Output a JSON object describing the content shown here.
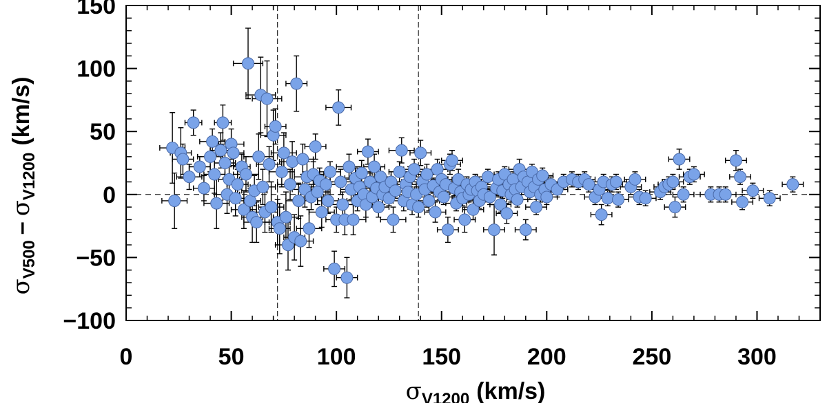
{
  "chart_data": {
    "type": "scatter",
    "title": "",
    "xlabel": {
      "symbol": "σ",
      "subscript": "V1200",
      "unit": "(km/s)"
    },
    "ylabel": {
      "symbol_a": "σ",
      "subscript_a": "V500",
      "minus": "–",
      "symbol_b": "σ",
      "subscript_b": "V1200",
      "unit": "(km/s)"
    },
    "xlim": [
      0,
      330
    ],
    "ylim": [
      -100,
      150
    ],
    "x_ticks": [
      "0",
      "50",
      "100",
      "150",
      "200",
      "250",
      "300"
    ],
    "x_tick_values": [
      0,
      50,
      100,
      150,
      200,
      250,
      300
    ],
    "y_ticks": [
      "150",
      "100",
      "50",
      "0",
      "−50",
      "−100"
    ],
    "y_tick_values": [
      150,
      100,
      50,
      0,
      -50,
      -100
    ],
    "reference_lines": {
      "horizontal_y": 0,
      "vertical_x": [
        72,
        139
      ]
    },
    "marker_color": "#7aa3e8",
    "points": [
      [
        22,
        37,
        6,
        28
      ],
      [
        23,
        -5,
        6,
        22
      ],
      [
        26,
        33,
        5,
        20
      ],
      [
        27,
        28,
        5,
        12
      ],
      [
        30,
        14,
        6,
        10
      ],
      [
        32,
        57,
        4,
        10
      ],
      [
        35,
        22,
        5,
        8
      ],
      [
        37,
        5,
        5,
        10
      ],
      [
        40,
        30,
        6,
        12
      ],
      [
        41,
        42,
        6,
        10
      ],
      [
        42,
        16,
        5,
        15
      ],
      [
        43,
        -7,
        6,
        20
      ],
      [
        45,
        35,
        5,
        14
      ],
      [
        46,
        57,
        4,
        14
      ],
      [
        47,
        25,
        5,
        12
      ],
      [
        48,
        0,
        6,
        15
      ],
      [
        49,
        12,
        5,
        10
      ],
      [
        50,
        40,
        6,
        12
      ],
      [
        51,
        33,
        5,
        10
      ],
      [
        52,
        -3,
        6,
        14
      ],
      [
        53,
        8,
        5,
        12
      ],
      [
        55,
        22,
        4,
        10
      ],
      [
        56,
        -12,
        6,
        15
      ],
      [
        57,
        16,
        6,
        14
      ],
      [
        58,
        104,
        7,
        28
      ],
      [
        59,
        -5,
        5,
        10
      ],
      [
        60,
        -18,
        5,
        20
      ],
      [
        61,
        3,
        6,
        12
      ],
      [
        62,
        -22,
        6,
        16
      ],
      [
        63,
        30,
        7,
        18
      ],
      [
        64,
        79,
        7,
        30
      ],
      [
        65,
        6,
        6,
        14
      ],
      [
        66,
        -14,
        6,
        16
      ],
      [
        67,
        76,
        7,
        30
      ],
      [
        68,
        24,
        6,
        14
      ],
      [
        69,
        -10,
        6,
        20
      ],
      [
        70,
        47,
        6,
        20
      ],
      [
        71,
        54,
        5,
        14
      ],
      [
        72,
        -22,
        6,
        18
      ],
      [
        73,
        -27,
        5,
        20
      ],
      [
        74,
        18,
        6,
        12
      ],
      [
        75,
        33,
        6,
        16
      ],
      [
        76,
        -18,
        6,
        20
      ],
      [
        77,
        -40,
        6,
        20
      ],
      [
        78,
        8,
        6,
        12
      ],
      [
        79,
        26,
        6,
        16
      ],
      [
        80,
        -34,
        5,
        18
      ],
      [
        81,
        88,
        5,
        22
      ],
      [
        82,
        -5,
        6,
        14
      ],
      [
        83,
        -37,
        6,
        20
      ],
      [
        84,
        28,
        5,
        12
      ],
      [
        85,
        4,
        6,
        14
      ],
      [
        86,
        14,
        6,
        12
      ],
      [
        87,
        -27,
        6,
        15
      ],
      [
        88,
        -2,
        6,
        10
      ],
      [
        89,
        16,
        5,
        10
      ],
      [
        90,
        38,
        5,
        10
      ],
      [
        91,
        2,
        6,
        10
      ],
      [
        92,
        11,
        5,
        10
      ],
      [
        93,
        -14,
        6,
        12
      ],
      [
        95,
        8,
        6,
        10
      ],
      [
        96,
        -5,
        5,
        10
      ],
      [
        97,
        18,
        5,
        8
      ],
      [
        99,
        -59,
        5,
        14
      ],
      [
        100,
        -20,
        5,
        10
      ],
      [
        101,
        69,
        6,
        14
      ],
      [
        102,
        10,
        5,
        10
      ],
      [
        103,
        -8,
        6,
        10
      ],
      [
        104,
        -20,
        5,
        12
      ],
      [
        105,
        -66,
        5,
        16
      ],
      [
        106,
        22,
        6,
        10
      ],
      [
        107,
        4,
        5,
        8
      ],
      [
        108,
        -20,
        6,
        12
      ],
      [
        109,
        13,
        5,
        8
      ],
      [
        110,
        -5,
        5,
        8
      ],
      [
        111,
        6,
        5,
        8
      ],
      [
        112,
        17,
        5,
        10
      ],
      [
        113,
        0,
        5,
        8
      ],
      [
        114,
        -8,
        6,
        10
      ],
      [
        115,
        34,
        5,
        10
      ],
      [
        116,
        10,
        5,
        8
      ],
      [
        117,
        -2,
        5,
        8
      ],
      [
        118,
        22,
        5,
        10
      ],
      [
        119,
        5,
        6,
        8
      ],
      [
        120,
        -10,
        5,
        8
      ],
      [
        121,
        14,
        5,
        8
      ],
      [
        122,
        0,
        5,
        8
      ],
      [
        123,
        6,
        5,
        8
      ],
      [
        125,
        -3,
        5,
        6
      ],
      [
        126,
        10,
        5,
        8
      ],
      [
        127,
        -20,
        6,
        10
      ],
      [
        128,
        3,
        5,
        6
      ],
      [
        130,
        18,
        5,
        8
      ],
      [
        131,
        35,
        6,
        10
      ],
      [
        132,
        -5,
        5,
        8
      ],
      [
        133,
        8,
        5,
        8
      ],
      [
        134,
        2,
        5,
        6
      ],
      [
        135,
        14,
        5,
        8
      ],
      [
        136,
        -8,
        5,
        8
      ],
      [
        137,
        20,
        5,
        8
      ],
      [
        138,
        0,
        5,
        6
      ],
      [
        139,
        -10,
        5,
        8
      ],
      [
        140,
        33,
        5,
        10
      ],
      [
        141,
        10,
        5,
        8
      ],
      [
        142,
        4,
        5,
        6
      ],
      [
        143,
        16,
        5,
        8
      ],
      [
        144,
        -5,
        5,
        8
      ],
      [
        146,
        7,
        5,
        6
      ],
      [
        147,
        -14,
        5,
        8
      ],
      [
        148,
        20,
        5,
        8
      ],
      [
        149,
        2,
        5,
        6
      ],
      [
        150,
        12,
        5,
        8
      ],
      [
        151,
        -2,
        5,
        6
      ],
      [
        152,
        8,
        5,
        6
      ],
      [
        153,
        -28,
        5,
        10
      ],
      [
        154,
        24,
        5,
        8
      ],
      [
        155,
        27,
        5,
        8
      ],
      [
        156,
        5,
        5,
        6
      ],
      [
        157,
        -7,
        5,
        6
      ],
      [
        158,
        12,
        5,
        8
      ],
      [
        159,
        2,
        5,
        6
      ],
      [
        160,
        -3,
        5,
        6
      ],
      [
        161,
        -20,
        5,
        10
      ],
      [
        162,
        8,
        5,
        6
      ],
      [
        163,
        0,
        5,
        6
      ],
      [
        164,
        4,
        5,
        6
      ],
      [
        165,
        -12,
        5,
        8
      ],
      [
        166,
        10,
        5,
        6
      ],
      [
        167,
        3,
        5,
        6
      ],
      [
        168,
        -5,
        5,
        6
      ],
      [
        169,
        6,
        5,
        6
      ],
      [
        170,
        0,
        5,
        6
      ],
      [
        172,
        14,
        5,
        6
      ],
      [
        173,
        -2,
        5,
        6
      ],
      [
        175,
        -28,
        5,
        20
      ],
      [
        176,
        5,
        5,
        6
      ],
      [
        177,
        12,
        5,
        6
      ],
      [
        178,
        -8,
        5,
        6
      ],
      [
        179,
        3,
        5,
        6
      ],
      [
        180,
        16,
        5,
        6
      ],
      [
        181,
        -15,
        5,
        8
      ],
      [
        182,
        8,
        5,
        6
      ],
      [
        183,
        0,
        5,
        6
      ],
      [
        184,
        12,
        5,
        6
      ],
      [
        185,
        4,
        5,
        6
      ],
      [
        186,
        -4,
        5,
        6
      ],
      [
        187,
        20,
        5,
        8
      ],
      [
        188,
        6,
        5,
        6
      ],
      [
        189,
        14,
        5,
        6
      ],
      [
        190,
        -28,
        5,
        8
      ],
      [
        191,
        10,
        5,
        6
      ],
      [
        192,
        2,
        5,
        6
      ],
      [
        193,
        18,
        5,
        6
      ],
      [
        194,
        6,
        5,
        6
      ],
      [
        195,
        -10,
        5,
        6
      ],
      [
        196,
        12,
        5,
        6
      ],
      [
        197,
        0,
        5,
        6
      ],
      [
        198,
        15,
        5,
        6
      ],
      [
        199,
        4,
        5,
        6
      ],
      [
        200,
        -2,
        5,
        6
      ],
      [
        202,
        8,
        5,
        6
      ],
      [
        205,
        4,
        5,
        6
      ],
      [
        208,
        10,
        5,
        6
      ],
      [
        212,
        12,
        5,
        6
      ],
      [
        215,
        10,
        5,
        6
      ],
      [
        218,
        12,
        5,
        6
      ],
      [
        220,
        8,
        5,
        6
      ],
      [
        223,
        -2,
        5,
        6
      ],
      [
        225,
        4,
        5,
        6
      ],
      [
        226,
        -16,
        5,
        8
      ],
      [
        227,
        10,
        5,
        6
      ],
      [
        229,
        -3,
        5,
        6
      ],
      [
        231,
        8,
        5,
        6
      ],
      [
        233,
        10,
        5,
        6
      ],
      [
        234,
        -4,
        5,
        6
      ],
      [
        240,
        6,
        5,
        6
      ],
      [
        242,
        12,
        5,
        6
      ],
      [
        244,
        -2,
        5,
        6
      ],
      [
        247,
        -3,
        5,
        6
      ],
      [
        254,
        2,
        5,
        6
      ],
      [
        256,
        6,
        5,
        6
      ],
      [
        258,
        8,
        5,
        6
      ],
      [
        260,
        10,
        5,
        6
      ],
      [
        261,
        -10,
        5,
        8
      ],
      [
        263,
        28,
        5,
        8
      ],
      [
        265,
        0,
        5,
        6
      ],
      [
        268,
        14,
        5,
        6
      ],
      [
        270,
        16,
        5,
        6
      ],
      [
        278,
        0,
        5,
        6
      ],
      [
        282,
        0,
        5,
        6
      ],
      [
        285,
        0,
        5,
        6
      ],
      [
        290,
        27,
        5,
        8
      ],
      [
        292,
        14,
        5,
        6
      ],
      [
        293,
        -6,
        5,
        6
      ],
      [
        298,
        3,
        5,
        6
      ],
      [
        306,
        -3,
        5,
        6
      ],
      [
        317,
        8,
        5,
        6
      ]
    ]
  }
}
